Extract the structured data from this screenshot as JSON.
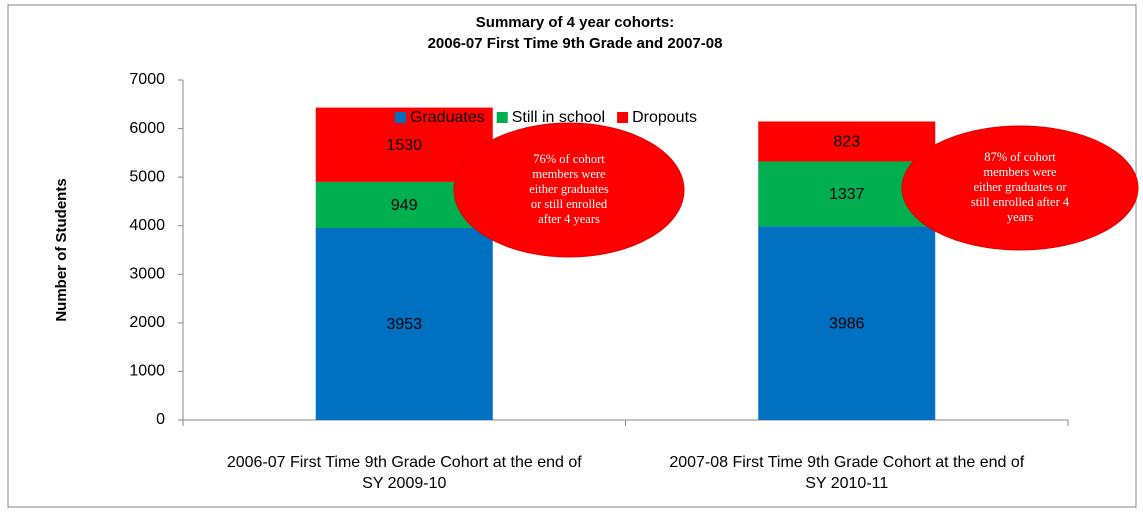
{
  "chart_data": {
    "type": "stacked_bar",
    "title": [
      "Summary of 4 year cohorts:",
      "2006-07 First Time 9th Grade and 2007-08"
    ],
    "y_label": "Number of Students",
    "categories": [
      [
        "2006-07 First Time 9th Grade Cohort at the end of",
        "SY 2009-10"
      ],
      [
        "2007-08 First Time 9th Grade Cohort at the end of",
        "SY 2010-11"
      ]
    ],
    "series": [
      {
        "name": "Graduates",
        "color": "#0070c0",
        "values": [
          3953,
          3986
        ]
      },
      {
        "name": "Still in school",
        "color": "#00b050",
        "values": [
          949,
          1337
        ]
      },
      {
        "name": "Dropouts",
        "color": "#ff0000",
        "values": [
          1530,
          823
        ]
      }
    ],
    "ylim": [
      0,
      7000
    ],
    "yticks": [
      0,
      1000,
      2000,
      3000,
      4000,
      5000,
      6000,
      7000
    ],
    "legend": "top",
    "annotations": [
      {
        "lines": [
          "76% of cohort",
          "members were",
          "either graduates",
          "or still enrolled",
          "after 4 years"
        ],
        "color": "#ff0000"
      },
      {
        "lines": [
          "87% of cohort",
          "members were",
          "either graduates or",
          "still enrolled after 4",
          "years"
        ],
        "color": "#ff0000"
      }
    ]
  }
}
